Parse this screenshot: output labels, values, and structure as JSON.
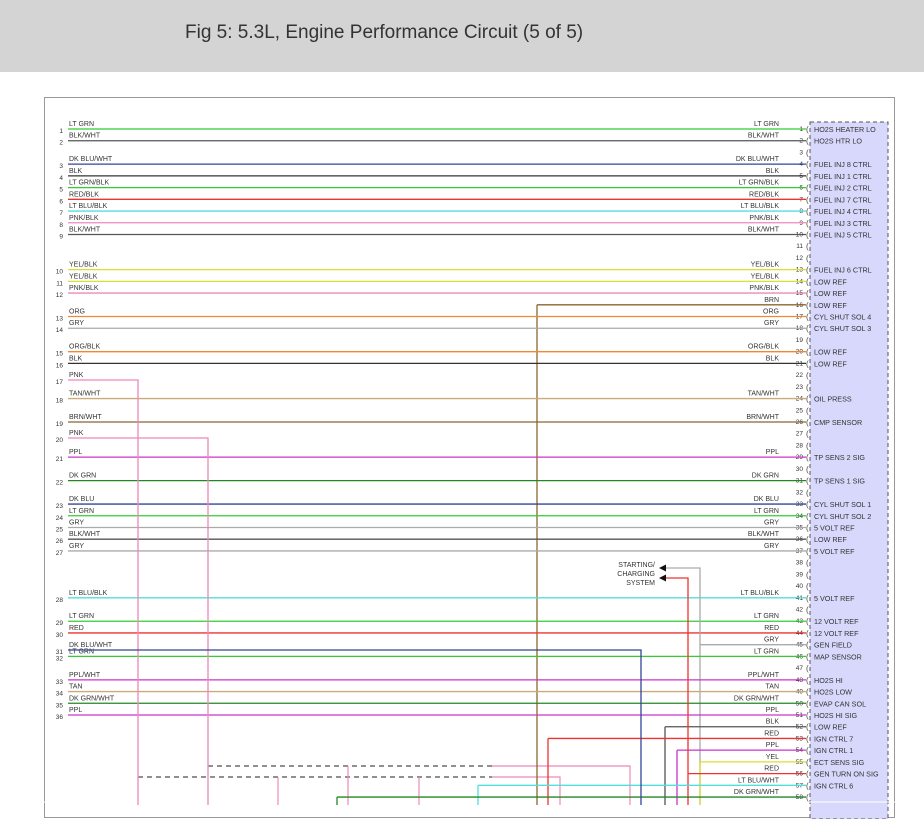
{
  "header": {
    "title": "Fig 5: 5.3L, Engine Performance Circuit (5 of 5)"
  },
  "diagram": {
    "circuits": [
      {
        "pin": 1,
        "wire": "LT GRN",
        "left_number": 1,
        "left_label": "LT GRN",
        "signal": "HO2S HEATER LO",
        "color": "#33cc33"
      },
      {
        "pin": 2,
        "wire": "BLK/WHT",
        "left_number": 2,
        "left_label": "BLK/WHT",
        "signal": "HO2S HTR LO",
        "color": "#555555"
      },
      {
        "pin": 3
      },
      {
        "pin": 4,
        "wire": "DK BLU/WHT",
        "left_number": 3,
        "left_label": "DK BLU/WHT",
        "signal": "FUEL INJ 8 CTRL",
        "color": "#334499"
      },
      {
        "pin": 5,
        "wire": "BLK",
        "left_number": 4,
        "left_label": "BLK",
        "signal": "FUEL INJ 1 CTRL",
        "color": "#333333"
      },
      {
        "pin": 6,
        "wire": "LT GRN/BLK",
        "left_number": 5,
        "left_label": "LT GRN/BLK",
        "signal": "FUEL INJ 2 CTRL",
        "color": "#33cc33"
      },
      {
        "pin": 7,
        "wire": "RED/BLK",
        "left_number": 6,
        "left_label": "RED/BLK",
        "signal": "FUEL INJ 7 CTRL",
        "color": "#ee3333"
      },
      {
        "pin": 8,
        "wire": "LT BLU/BLK",
        "left_number": 7,
        "left_label": "LT BLU/BLK",
        "signal": "FUEL INJ 4 CTRL",
        "color": "#55dddd"
      },
      {
        "pin": 9,
        "wire": "PNK/BLK",
        "left_number": 8,
        "left_label": "PNK/BLK",
        "signal": "FUEL INJ 3 CTRL",
        "color": "#ee88bb"
      },
      {
        "pin": 10,
        "wire": "BLK/WHT",
        "left_number": 9,
        "left_label": "BLK/WHT",
        "signal": "FUEL INJ 5 CTRL",
        "color": "#555555"
      },
      {
        "pin": 11
      },
      {
        "pin": 12
      },
      {
        "pin": 13,
        "wire": "YEL/BLK",
        "left_number": 10,
        "left_label": "YEL/BLK",
        "signal": "FUEL INJ 6 CTRL",
        "color": "#dddd33"
      },
      {
        "pin": 14,
        "wire": "YEL/BLK",
        "left_number": 11,
        "left_label": "YEL/BLK",
        "signal": "LOW REF",
        "color": "#dddd33"
      },
      {
        "pin": 15,
        "wire": "PNK/BLK",
        "left_number": 12,
        "left_label": "PNK/BLK",
        "signal": "LOW REF",
        "color": "#ee88bb"
      },
      {
        "pin": 16,
        "wire": "BRN",
        "signal": "LOW REF",
        "color": "#886633"
      },
      {
        "pin": 17,
        "wire": "ORG",
        "left_number": 13,
        "left_label": "ORG",
        "signal": "CYL SHUT SOL 4",
        "color": "#ee8833"
      },
      {
        "pin": 18,
        "wire": "GRY",
        "left_number": 14,
        "left_label": "GRY",
        "signal": "CYL SHUT SOL 3",
        "color": "#aaaaaa"
      },
      {
        "pin": 19
      },
      {
        "pin": 20,
        "wire": "ORG/BLK",
        "left_number": 15,
        "left_label": "ORG/BLK",
        "signal": "LOW REF",
        "color": "#ee8833"
      },
      {
        "pin": 21,
        "wire": "BLK",
        "left_number": 16,
        "left_label": "BLK",
        "signal": "LOW REF",
        "color": "#333333"
      },
      {
        "pin": 22
      },
      {
        "pin": 23
      },
      {
        "pin": 24,
        "wire": "TAN/WHT",
        "left_number": 18,
        "left_label": "TAN/WHT",
        "signal": "OIL PRESS",
        "color": "#ccaa77"
      },
      {
        "pin": 25
      },
      {
        "pin": 26,
        "wire": "BRN/WHT",
        "left_number": 19,
        "left_label": "BRN/WHT",
        "signal": "CMP SENSOR",
        "color": "#886633"
      },
      {
        "pin": 27
      },
      {
        "pin": 28
      },
      {
        "pin": 29,
        "wire": "PPL",
        "left_number": 21,
        "left_label": "PPL",
        "signal": "TP SENS 2 SIG",
        "color": "#cc33cc"
      },
      {
        "pin": 30
      },
      {
        "pin": 31,
        "wire": "DK GRN",
        "left_number": 22,
        "left_label": "DK GRN",
        "signal": "TP SENS 1 SIG",
        "color": "#228822"
      },
      {
        "pin": 32
      },
      {
        "pin": 33,
        "wire": "DK BLU",
        "left_number": 23,
        "left_label": "DK BLU",
        "signal": "CYL SHUT SOL 1",
        "color": "#334499"
      },
      {
        "pin": 34,
        "wire": "LT GRN",
        "left_number": 24,
        "left_label": "LT GRN",
        "signal": "CYL SHUT SOL 2",
        "color": "#33cc33"
      },
      {
        "pin": 35,
        "wire": "GRY",
        "left_number": 25,
        "left_label": "GRY",
        "signal": "5 VOLT REF",
        "color": "#aaaaaa"
      },
      {
        "pin": 36,
        "wire": "BLK/WHT",
        "left_number": 26,
        "left_label": "BLK/WHT",
        "signal": "LOW REF",
        "color": "#555555"
      },
      {
        "pin": 37,
        "wire": "GRY",
        "left_number": 27,
        "left_label": "GRY",
        "signal": "5 VOLT REF",
        "color": "#aaaaaa"
      },
      {
        "pin": 38
      },
      {
        "pin": 39
      },
      {
        "pin": 40
      },
      {
        "pin": 41,
        "wire": "LT BLU/BLK",
        "left_number": 28,
        "left_label": "LT BLU/BLK",
        "signal": "5 VOLT REF",
        "color": "#55dddd"
      },
      {
        "pin": 42
      },
      {
        "pin": 43,
        "wire": "LT GRN",
        "left_number": 29,
        "left_label": "LT GRN",
        "signal": "12 VOLT REF",
        "color": "#33cc33"
      },
      {
        "pin": 44,
        "wire": "RED",
        "left_number": 30,
        "left_label": "RED",
        "signal": "12 VOLT REF",
        "color": "#ee3333"
      },
      {
        "pin": 45,
        "wire": "GRY",
        "signal": "GEN FIELD",
        "color": "#aaaaaa"
      },
      {
        "pin": 46,
        "wire": "LT GRN",
        "left_number": 32,
        "left_label": "LT GRN",
        "signal": "MAP SENSOR",
        "color": "#33cc33"
      },
      {
        "pin": 47
      },
      {
        "pin": 48,
        "wire": "PPL/WHT",
        "left_number": 33,
        "left_label": "PPL/WHT",
        "signal": "HO2S HI",
        "color": "#cc33cc"
      },
      {
        "pin": 49,
        "wire": "TAN",
        "left_number": 34,
        "left_label": "TAN",
        "signal": "HO2S LOW",
        "color": "#ccaa77"
      },
      {
        "pin": 50,
        "wire": "DK GRN/WHT",
        "left_number": 35,
        "left_label": "DK GRN/WHT",
        "signal": "EVAP CAN SOL",
        "color": "#228822"
      },
      {
        "pin": 51,
        "wire": "PPL",
        "left_number": 36,
        "left_label": "PPL",
        "signal": "HO2S HI SIG",
        "color": "#cc33cc"
      },
      {
        "pin": 52,
        "wire": "BLK",
        "signal": "LOW REF",
        "color": "#555555"
      },
      {
        "pin": 53,
        "wire": "RED",
        "signal": "IGN CTRL 7",
        "color": "#ee3333"
      },
      {
        "pin": 54,
        "wire": "PPL",
        "signal": "IGN CTRL 1",
        "color": "#cc33cc"
      },
      {
        "pin": 55,
        "wire": "YEL",
        "signal": "ECT SENS SIG",
        "color": "#dddd33"
      },
      {
        "pin": 56,
        "wire": "RED",
        "signal": "GEN TURN ON SIG",
        "color": "#ee3333"
      },
      {
        "pin": 57,
        "wire": "LT BLU/WHT",
        "signal": "IGN CTRL 6",
        "color": "#55dddd"
      },
      {
        "pin": 58,
        "wire": "DK GRN/WHT",
        "color": "#228822"
      }
    ],
    "left_only": [
      {
        "left_number": 17,
        "left_label": "PNK",
        "color": "#ee88bb"
      },
      {
        "left_number": 20,
        "left_label": "PNK",
        "color": "#ee88bb"
      },
      {
        "left_number": 31,
        "left_label": "DK BLU/WHT",
        "color": "#334499"
      }
    ],
    "destination": [
      "STARTING/",
      "CHARGING",
      "SYSTEM"
    ]
  }
}
